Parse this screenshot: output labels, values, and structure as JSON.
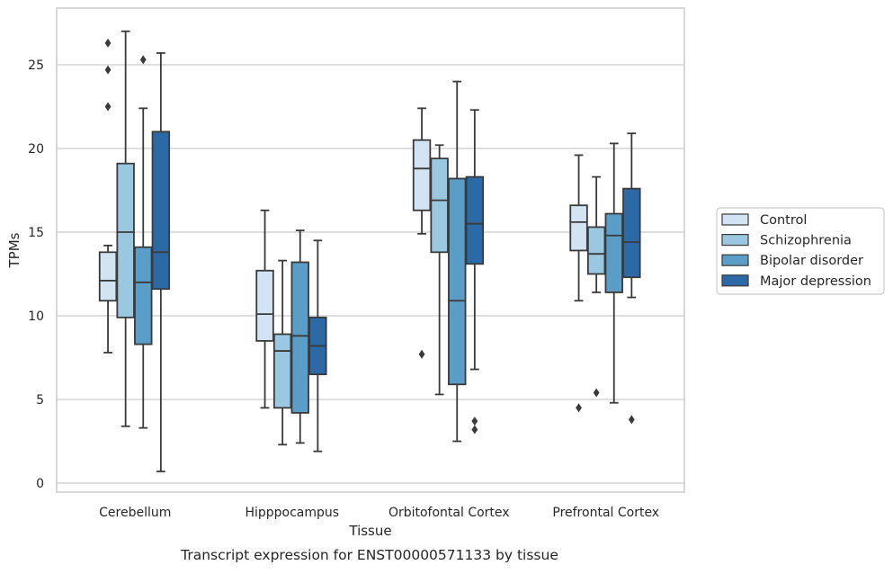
{
  "chart_data": {
    "type": "box",
    "title": "",
    "caption": "Transcript expression for ENST00000571133 by tissue",
    "xlabel": "Tissue",
    "ylabel": "TPMs",
    "ylim": [
      -0.5,
      28
    ],
    "yticks": [
      0,
      5,
      10,
      15,
      20,
      25
    ],
    "grid": true,
    "legend_position": "right",
    "categories": [
      "Cerebellum",
      "Hipppocampus",
      "Orbitofontal Cortex",
      "Prefrontal Cortex"
    ],
    "series": [
      {
        "name": "Control",
        "color": "#d2e3f3",
        "boxes": [
          {
            "whisker_low": 7.8,
            "q1": 10.9,
            "median": 12.1,
            "q3": 13.8,
            "whisker_high": 14.2,
            "outliers": [
              22.5,
              24.7,
              26.3
            ]
          },
          {
            "whisker_low": 4.5,
            "q1": 8.5,
            "median": 10.1,
            "q3": 12.7,
            "whisker_high": 16.3,
            "outliers": []
          },
          {
            "whisker_low": 14.9,
            "q1": 16.3,
            "median": 18.8,
            "q3": 20.5,
            "whisker_high": 22.4,
            "outliers": [
              7.7
            ]
          },
          {
            "whisker_low": 10.9,
            "q1": 13.9,
            "median": 15.6,
            "q3": 16.6,
            "whisker_high": 19.6,
            "outliers": [
              4.5
            ]
          }
        ]
      },
      {
        "name": "Schizophrenia",
        "color": "#9ac8e0",
        "boxes": [
          {
            "whisker_low": 3.4,
            "q1": 9.9,
            "median": 15.0,
            "q3": 19.1,
            "whisker_high": 27.0,
            "outliers": []
          },
          {
            "whisker_low": 2.3,
            "q1": 4.5,
            "median": 7.9,
            "q3": 8.9,
            "whisker_high": 13.3,
            "outliers": []
          },
          {
            "whisker_low": 5.3,
            "q1": 13.8,
            "median": 16.9,
            "q3": 19.4,
            "whisker_high": 20.2,
            "outliers": []
          },
          {
            "whisker_low": 11.4,
            "q1": 12.5,
            "median": 13.7,
            "q3": 15.3,
            "whisker_high": 18.3,
            "outliers": [
              5.4
            ]
          }
        ]
      },
      {
        "name": "Bipolar disorder",
        "color": "#5a9ec8",
        "boxes": [
          {
            "whisker_low": 3.3,
            "q1": 8.3,
            "median": 12.0,
            "q3": 14.1,
            "whisker_high": 22.4,
            "outliers": [
              25.3
            ]
          },
          {
            "whisker_low": 2.4,
            "q1": 4.2,
            "median": 8.8,
            "q3": 13.2,
            "whisker_high": 15.1,
            "outliers": []
          },
          {
            "whisker_low": 2.5,
            "q1": 5.9,
            "median": 10.9,
            "q3": 18.2,
            "whisker_high": 24.0,
            "outliers": []
          },
          {
            "whisker_low": 4.8,
            "q1": 11.4,
            "median": 14.8,
            "q3": 16.1,
            "whisker_high": 20.3,
            "outliers": []
          }
        ]
      },
      {
        "name": "Major depression",
        "color": "#2b6aa6",
        "boxes": [
          {
            "whisker_low": 0.7,
            "q1": 11.6,
            "median": 13.8,
            "q3": 21.0,
            "whisker_high": 25.7,
            "outliers": []
          },
          {
            "whisker_low": 1.9,
            "q1": 6.5,
            "median": 8.2,
            "q3": 9.9,
            "whisker_high": 14.5,
            "outliers": []
          },
          {
            "whisker_low": 6.8,
            "q1": 13.1,
            "median": 15.5,
            "q3": 18.3,
            "whisker_high": 22.3,
            "outliers": [
              3.2,
              3.7
            ]
          },
          {
            "whisker_low": 11.1,
            "q1": 12.3,
            "median": 14.4,
            "q3": 17.6,
            "whisker_high": 20.9,
            "outliers": [
              3.8
            ]
          }
        ]
      }
    ]
  }
}
